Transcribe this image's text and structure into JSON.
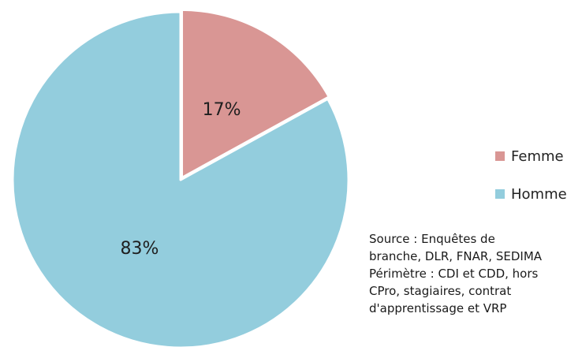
{
  "chart_data": {
    "type": "pie",
    "title": "",
    "categories": [
      "Femme",
      "Homme"
    ],
    "values": [
      17,
      83
    ],
    "labels": [
      "17%",
      "83%"
    ],
    "colors": [
      "#d99694",
      "#93cddd"
    ],
    "slice_order": "clockwise from top",
    "legend_position": "right",
    "legend": [
      {
        "label": "Femme",
        "color": "#d99694"
      },
      {
        "label": "Homme",
        "color": "#93cddd"
      }
    ]
  },
  "source_note": {
    "lines": [
      "Source : Enquêtes de",
      "branche, DLR, FNAR,  SEDIMA",
      "Périmètre : CDI et CDD, hors",
      "CPro, stagiaires, contrat",
      "d'apprentissage et VRP"
    ]
  }
}
